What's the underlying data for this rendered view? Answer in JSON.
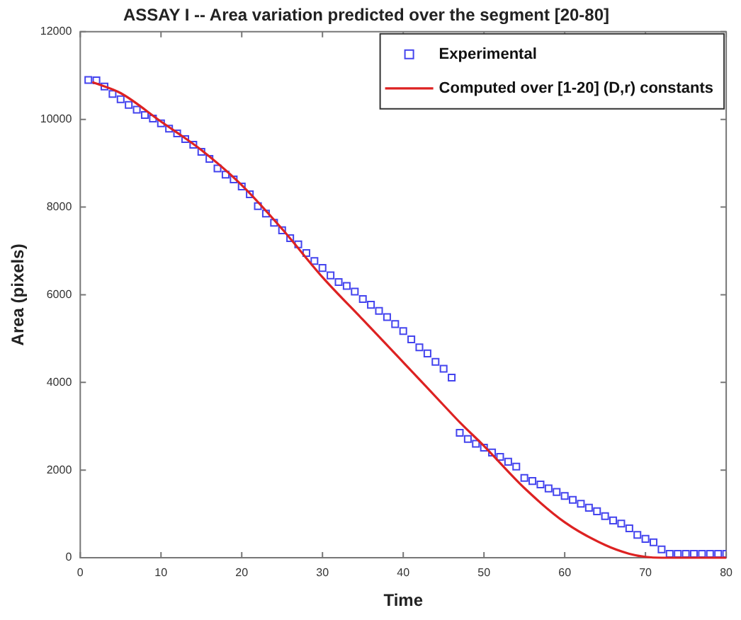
{
  "chart_data": {
    "type": "scatter",
    "title": "ASSAY I -- Area variation predicted over the segment [20-80]",
    "xlabel": "Time",
    "ylabel": "Area (pixels)",
    "xlim": [
      0,
      80
    ],
    "xticks": [
      0,
      10,
      20,
      30,
      40,
      50,
      60,
      70,
      80
    ],
    "ylim": [
      0,
      12000
    ],
    "yticks": [
      0,
      2000,
      4000,
      6000,
      8000,
      10000,
      12000
    ],
    "grid": false,
    "legend": "top right",
    "marker": "square",
    "series": [
      {
        "name": "Experimental",
        "color": "#4444ee",
        "x": [
          1,
          2,
          3,
          4,
          5,
          6,
          7,
          8,
          9,
          10,
          11,
          12,
          13,
          14,
          15,
          16,
          17,
          18,
          19,
          20,
          21,
          22,
          23,
          24,
          25,
          26,
          27,
          28,
          29,
          30,
          31,
          32,
          33,
          34,
          35,
          36,
          37,
          38,
          39,
          40,
          41,
          42,
          43,
          44,
          45,
          46,
          47,
          48,
          49,
          50,
          51,
          52,
          53,
          54,
          55,
          56,
          57,
          58,
          59,
          60,
          61,
          62,
          63,
          64,
          65,
          66,
          67,
          68,
          69,
          70,
          71,
          72,
          73,
          74,
          75,
          76,
          77,
          78,
          79,
          80
        ],
        "values": [
          10900,
          10890,
          10750,
          10580,
          10460,
          10330,
          10220,
          10100,
          10020,
          9910,
          9790,
          9680,
          9550,
          9420,
          9260,
          9100,
          8880,
          8740,
          8630,
          8470,
          8290,
          8020,
          7850,
          7640,
          7470,
          7290,
          7150,
          6950,
          6770,
          6610,
          6440,
          6290,
          6200,
          6070,
          5900,
          5770,
          5630,
          5490,
          5330,
          5170,
          4980,
          4800,
          4660,
          4470,
          4310,
          4110,
          2850,
          2710,
          2600,
          2510,
          2400,
          2300,
          2190,
          2080,
          1820,
          1750,
          1670,
          1580,
          1500,
          1410,
          1320,
          1230,
          1140,
          1060,
          950,
          850,
          780,
          670,
          520,
          430,
          350,
          190,
          90,
          90,
          90,
          90,
          90,
          90,
          90,
          90
        ]
      },
      {
        "name": "Computed over [1-20] (D,r) constants",
        "type": "line",
        "marker": "none",
        "color": "#dd2222",
        "x": [
          1.5,
          5,
          10,
          15,
          20,
          25,
          30,
          35,
          40,
          45,
          47,
          50,
          55,
          60,
          65,
          68,
          70,
          72,
          75,
          80
        ],
        "values": [
          10850,
          10600,
          9950,
          9300,
          8500,
          7500,
          6400,
          5430,
          4460,
          3480,
          3090,
          2550,
          1590,
          810,
          290,
          90,
          20,
          0,
          0,
          0
        ]
      }
    ]
  }
}
